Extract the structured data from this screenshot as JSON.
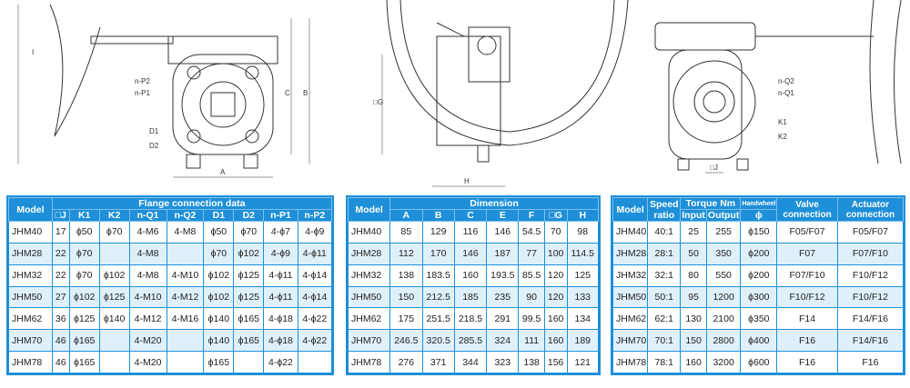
{
  "drawings": {
    "left_labels": [
      "I",
      "n-P2",
      "n-P1",
      "D1",
      "D2",
      "C",
      "B",
      "A"
    ],
    "middle_labels": [
      "□G",
      "H"
    ],
    "right_labels": [
      "n-Q2",
      "n-Q1",
      "K1",
      "K2",
      "□J"
    ]
  },
  "colors": {
    "header": "#1e8fd8",
    "alt_row": "#dff0fb"
  },
  "flange": {
    "model_label": "Model",
    "group_label": "Flange connection data",
    "columns": [
      "□J",
      "K1",
      "K2",
      "n-Q1",
      "n-Q2",
      "D1",
      "D2",
      "n-P1",
      "n-P2"
    ],
    "rows": [
      [
        "JHM40",
        "17",
        "ϕ50",
        "ϕ70",
        "4-M6",
        "4-M8",
        "ϕ50",
        "ϕ70",
        "4-ϕ7",
        "4-ϕ9"
      ],
      [
        "JHM28",
        "22",
        "ϕ70",
        "",
        "4-M8",
        "",
        "ϕ70",
        "ϕ102",
        "4-ϕ9",
        "4-ϕ11"
      ],
      [
        "JHM32",
        "22",
        "ϕ70",
        "ϕ102",
        "4-M8",
        "4-M10",
        "ϕ102",
        "ϕ125",
        "4-ϕ11",
        "4-ϕ14"
      ],
      [
        "JHM50",
        "27",
        "ϕ102",
        "ϕ125",
        "4-M10",
        "4-M12",
        "ϕ102",
        "ϕ125",
        "4-ϕ11",
        "4-ϕ14"
      ],
      [
        "JHM62",
        "36",
        "ϕ125",
        "ϕ140",
        "4-M12",
        "4-M16",
        "ϕ140",
        "ϕ165",
        "4-ϕ18",
        "4-ϕ22"
      ],
      [
        "JHM70",
        "46",
        "ϕ165",
        "",
        "4-M20",
        "",
        "ϕ140",
        "ϕ165",
        "4-ϕ18",
        "4-ϕ22"
      ],
      [
        "JHM78",
        "46",
        "ϕ165",
        "",
        "4-M20",
        "",
        "ϕ165",
        "",
        "4-ϕ22",
        ""
      ]
    ]
  },
  "dimension": {
    "model_label": "Model",
    "group_label": "Dimension",
    "columns": [
      "A",
      "B",
      "C",
      "E",
      "F",
      "□G",
      "H"
    ],
    "rows": [
      [
        "JHM40",
        "85",
        "129",
        "116",
        "146",
        "54.5",
        "70",
        "98"
      ],
      [
        "JHM28",
        "112",
        "170",
        "146",
        "187",
        "77",
        "100",
        "114.5"
      ],
      [
        "JHM32",
        "138",
        "183.5",
        "160",
        "193.5",
        "85.5",
        "120",
        "125"
      ],
      [
        "JHM50",
        "150",
        "212.5",
        "185",
        "235",
        "90",
        "120",
        "133"
      ],
      [
        "JHM62",
        "175",
        "251.5",
        "218.5",
        "291",
        "99.5",
        "160",
        "134"
      ],
      [
        "JHM70",
        "246.5",
        "320.5",
        "285.5",
        "324",
        "111",
        "160",
        "189"
      ],
      [
        "JHM78",
        "276",
        "371",
        "344",
        "323",
        "138",
        "156",
        "121"
      ]
    ]
  },
  "specs": {
    "model_label": "Model",
    "speed_label": "Speed ratio",
    "torque_label": "Torque Nm",
    "input_label": "Input",
    "output_label": "Output",
    "handwheel_label": "Handwheel",
    "phi_label": "ϕ",
    "valve_label": "Valve connection",
    "actuator_label": "Actuator connection",
    "rows": [
      [
        "JHM40",
        "40:1",
        "25",
        "255",
        "ϕ150",
        "F05/F07",
        "F05/F07"
      ],
      [
        "JHM28",
        "28:1",
        "50",
        "350",
        "ϕ200",
        "F07",
        "F07/F10"
      ],
      [
        "JHM32",
        "32:1",
        "80",
        "550",
        "ϕ200",
        "F07/F10",
        "F10/F12"
      ],
      [
        "JHM50",
        "50:1",
        "95",
        "1200",
        "ϕ300",
        "F10/F12",
        "F10/F12"
      ],
      [
        "JHM62",
        "62:1",
        "130",
        "2100",
        "ϕ350",
        "F14",
        "F14/F16"
      ],
      [
        "JHM70",
        "70:1",
        "150",
        "2800",
        "ϕ400",
        "F16",
        "F14/F16"
      ],
      [
        "JHM78",
        "78:1",
        "160",
        "3200",
        "ϕ600",
        "F16",
        "F16"
      ]
    ]
  }
}
